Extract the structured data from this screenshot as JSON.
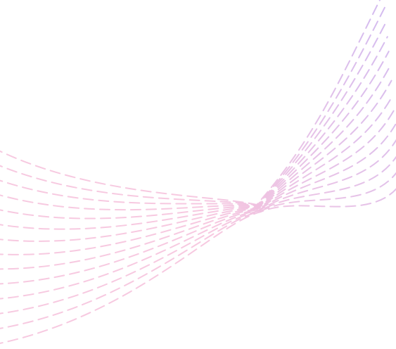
{
  "artwork": {
    "kind": "decorative-dashed-wave",
    "background_color": "#ffffff",
    "gradient": {
      "color_start": "#f6c3dd",
      "color_end": "#cdb3ef"
    },
    "line_count": 14,
    "dash_style": "dashed"
  }
}
